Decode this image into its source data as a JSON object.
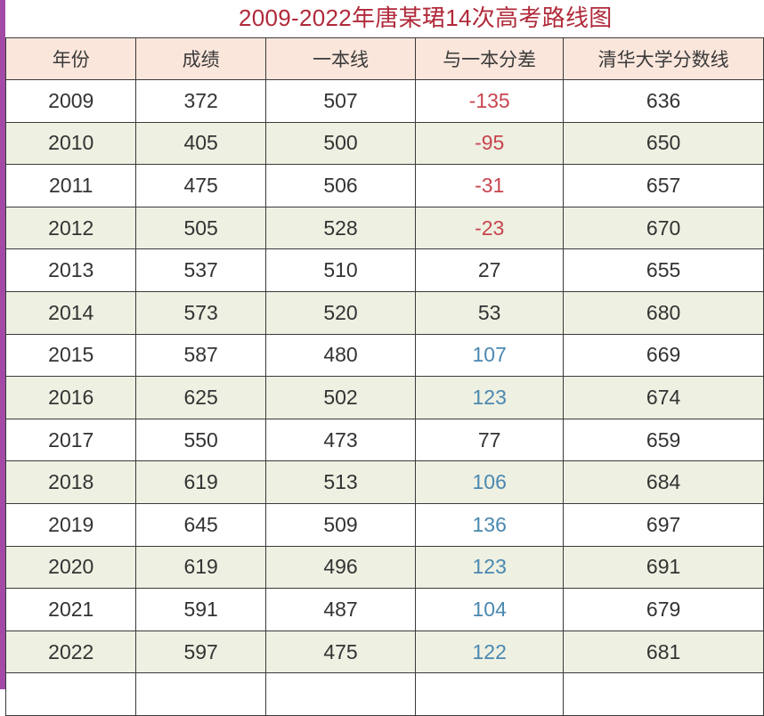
{
  "title": "2009-2022年唐某珺14次高考路线图",
  "colors": {
    "title": "#b02a3a",
    "header_bg": "#fbe6dc",
    "row_alt_bg": "#eef0e2",
    "negative": "#c8454e",
    "positive_highlight": "#4a88b0",
    "left_bar": "#a24aa6"
  },
  "table": {
    "headers": [
      "年份",
      "成绩",
      "一本线",
      "与一本分差",
      "清华大学分数线"
    ],
    "rows": [
      {
        "year": "2009",
        "score": "372",
        "tier1": "507",
        "diff": "-135",
        "tsinghua": "636",
        "diff_style": "neg"
      },
      {
        "year": "2010",
        "score": "405",
        "tier1": "500",
        "diff": "-95",
        "tsinghua": "650",
        "diff_style": "neg"
      },
      {
        "year": "2011",
        "score": "475",
        "tier1": "506",
        "diff": "-31",
        "tsinghua": "657",
        "diff_style": "neg"
      },
      {
        "year": "2012",
        "score": "505",
        "tier1": "528",
        "diff": "-23",
        "tsinghua": "670",
        "diff_style": "neg"
      },
      {
        "year": "2013",
        "score": "537",
        "tier1": "510",
        "diff": "27",
        "tsinghua": "655",
        "diff_style": "plain"
      },
      {
        "year": "2014",
        "score": "573",
        "tier1": "520",
        "diff": "53",
        "tsinghua": "680",
        "diff_style": "plain"
      },
      {
        "year": "2015",
        "score": "587",
        "tier1": "480",
        "diff": "107",
        "tsinghua": "669",
        "diff_style": "pos"
      },
      {
        "year": "2016",
        "score": "625",
        "tier1": "502",
        "diff": "123",
        "tsinghua": "674",
        "diff_style": "pos"
      },
      {
        "year": "2017",
        "score": "550",
        "tier1": "473",
        "diff": "77",
        "tsinghua": "659",
        "diff_style": "plain"
      },
      {
        "year": "2018",
        "score": "619",
        "tier1": "513",
        "diff": "106",
        "tsinghua": "684",
        "diff_style": "pos"
      },
      {
        "year": "2019",
        "score": "645",
        "tier1": "509",
        "diff": "136",
        "tsinghua": "697",
        "diff_style": "pos"
      },
      {
        "year": "2020",
        "score": "619",
        "tier1": "496",
        "diff": "123",
        "tsinghua": "691",
        "diff_style": "pos"
      },
      {
        "year": "2021",
        "score": "591",
        "tier1": "487",
        "diff": "104",
        "tsinghua": "679",
        "diff_style": "pos"
      },
      {
        "year": "2022",
        "score": "597",
        "tier1": "475",
        "diff": "122",
        "tsinghua": "681",
        "diff_style": "pos"
      }
    ]
  }
}
